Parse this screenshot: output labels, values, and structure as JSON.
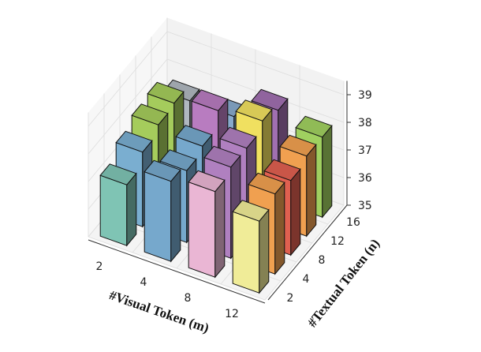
{
  "chart_data": {
    "type": "bar3d",
    "title": "",
    "xlabel": "#Visual Token (m)",
    "ylabel": "#Textual Token (n)",
    "zlabel": "",
    "x_categories": [
      "2",
      "4",
      "8",
      "12"
    ],
    "y_categories": [
      "2",
      "4",
      "8",
      "12",
      "16"
    ],
    "zlim": [
      35,
      39.5
    ],
    "z_ticks": [
      "35",
      "36",
      "37",
      "38",
      "39"
    ],
    "grid": true,
    "values": [
      [
        37.2,
        37.7,
        38.0,
        38.1,
        37.5
      ],
      [
        37.9,
        37.6,
        37.8,
        38.4,
        37.5
      ],
      [
        38.1,
        38.3,
        38.3,
        38.6,
        38.3
      ],
      [
        37.6,
        37.9,
        37.7,
        37.9,
        37.9
      ]
    ],
    "colors": [
      [
        "#7fc4b4",
        "#7aaed0",
        "#a5cc5c",
        "#a5cc5c",
        "#b0b8c0"
      ],
      [
        "#76a8cc",
        "#76a8cc",
        "#76a8cc",
        "#b87cc0",
        "#88aacc"
      ],
      [
        "#eab6d4",
        "#b080c0",
        "#b080c0",
        "#f0e060",
        "#a070b0"
      ],
      [
        "#f0ec98",
        "#f0a050",
        "#e06050",
        "#f0a050",
        "#a0d060"
      ]
    ]
  }
}
